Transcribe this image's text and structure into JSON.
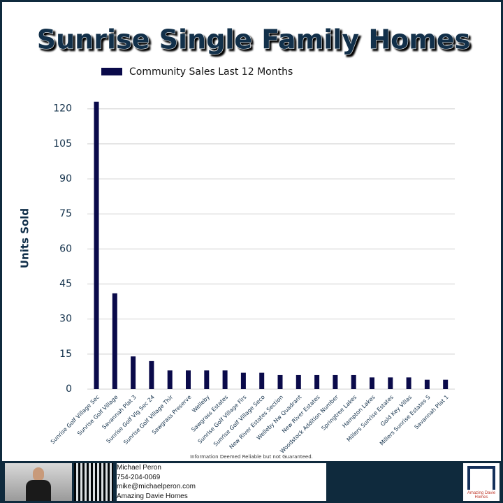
{
  "chart_data": {
    "type": "bar",
    "title": "Sunrise Single Family Homes",
    "ylabel": "Units Sold",
    "categories": [
      "Sunrise Golf Village Sec",
      "Sunrise Golf Village",
      "Savannah Plat 3",
      "Sunrise Golf Vlg Sec 24",
      "Sunrise Golf Village Thir",
      "Sawgrass Preserve",
      "Welleby",
      "Sawgrass Estates",
      "Sunrise Golf Village Firs",
      "Sunrise Golf Village Seco",
      "New River Estates Section",
      "Welleby Nw Quadrant",
      "New River Estates",
      "Woodstock Addition Number",
      "Springtree Lakes",
      "Hampton Lakes",
      "Millers Sunrise Estates",
      "Gold Key Villas",
      "Millers Sunrise Estates S",
      "Savannah Plat 1"
    ],
    "series": [
      {
        "name": "Community Sales Last 12 Months",
        "color": "#0a0a4a",
        "values": [
          123,
          41,
          14,
          12,
          8,
          8,
          8,
          8,
          7,
          7,
          6,
          6,
          6,
          6,
          6,
          5,
          5,
          5,
          4,
          4
        ]
      }
    ],
    "ylim": [
      0,
      125
    ],
    "yticks": [
      0,
      15,
      30,
      45,
      60,
      75,
      90,
      105,
      120
    ],
    "grid": true,
    "legend": "top",
    "note": "Information Deemed Reliable but not Guaranteed."
  },
  "footer": {
    "name": "Michael Peron",
    "phone": "754-204-0069",
    "email": "mike@michaelperon.com",
    "company": "Amazing Davie Homes",
    "logo_text": "Amazing Davie Homes"
  }
}
